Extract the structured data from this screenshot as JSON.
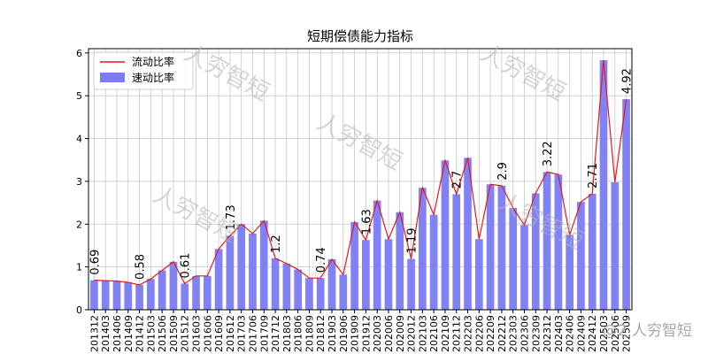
{
  "chart_data": {
    "type": "bar",
    "title": "短期偿债能力指标",
    "xlabel": "",
    "ylabel": "",
    "ylim": [
      0,
      6.1
    ],
    "yticks": [
      0,
      1,
      2,
      3,
      4,
      5,
      6
    ],
    "grid": true,
    "legend_position": "top-left",
    "categories": [
      "201312",
      "201403",
      "201406",
      "201409",
      "201412",
      "201503",
      "201506",
      "201509",
      "201512",
      "201603",
      "201606",
      "201609",
      "201612",
      "201703",
      "201706",
      "201709",
      "201712",
      "201803",
      "201806",
      "201809",
      "201812",
      "201903",
      "201906",
      "201909",
      "201912",
      "202003",
      "202006",
      "202009",
      "202012",
      "202103",
      "202106",
      "202109",
      "202112",
      "202203",
      "202206",
      "202209",
      "202212",
      "202303",
      "202306",
      "202309",
      "202312",
      "202403",
      "202406",
      "202409",
      "202412",
      "202503",
      "202506",
      "202509"
    ],
    "series": [
      {
        "name": "流动比率",
        "type": "line",
        "color": "#e31a1c",
        "values": [
          0.69,
          0.68,
          0.67,
          0.64,
          0.58,
          0.72,
          0.92,
          1.12,
          0.61,
          0.79,
          0.79,
          1.42,
          1.73,
          2.0,
          1.78,
          2.08,
          1.2,
          1.08,
          0.94,
          0.74,
          0.74,
          1.18,
          0.82,
          2.05,
          1.63,
          2.55,
          1.65,
          2.28,
          1.19,
          2.85,
          2.22,
          3.49,
          2.7,
          3.55,
          1.65,
          2.93,
          2.9,
          2.38,
          1.98,
          2.72,
          3.22,
          3.16,
          1.75,
          2.52,
          2.71,
          5.83,
          2.98,
          4.92
        ]
      },
      {
        "name": "速动比率",
        "type": "bar",
        "color": "#7b7bf7",
        "values": [
          0.69,
          0.68,
          0.67,
          0.64,
          0.58,
          0.72,
          0.92,
          1.12,
          0.61,
          0.79,
          0.79,
          1.42,
          1.73,
          2.0,
          1.78,
          2.08,
          1.2,
          1.08,
          0.94,
          0.74,
          0.74,
          1.18,
          0.82,
          2.05,
          1.63,
          2.55,
          1.65,
          2.28,
          1.19,
          2.85,
          2.22,
          3.49,
          2.7,
          3.55,
          1.65,
          2.93,
          2.9,
          2.38,
          1.98,
          2.72,
          3.22,
          3.16,
          1.75,
          2.52,
          2.71,
          5.83,
          2.98,
          4.92
        ]
      }
    ],
    "data_labels": [
      {
        "index": 0,
        "text": "0.69"
      },
      {
        "index": 4,
        "text": "0.58"
      },
      {
        "index": 8,
        "text": "0.61"
      },
      {
        "index": 12,
        "text": "1.73"
      },
      {
        "index": 16,
        "text": "1.2"
      },
      {
        "index": 20,
        "text": "0.74"
      },
      {
        "index": 24,
        "text": "1.63"
      },
      {
        "index": 28,
        "text": "1.19"
      },
      {
        "index": 32,
        "text": "2.7"
      },
      {
        "index": 36,
        "text": "2.9"
      },
      {
        "index": 40,
        "text": "3.22"
      },
      {
        "index": 44,
        "text": "2.71"
      },
      {
        "index": 47,
        "text": "4.92"
      }
    ]
  },
  "watermark": {
    "text": "人穷智短",
    "source_text": "@2 人穷智短"
  }
}
